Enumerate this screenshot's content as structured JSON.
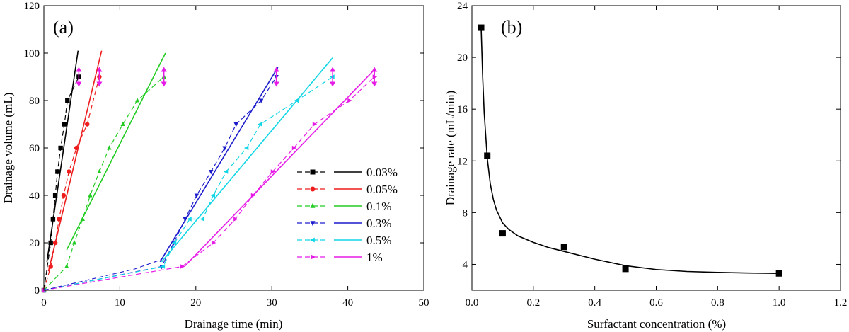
{
  "chart_data": [
    {
      "type": "line",
      "panel_label": "(a)",
      "xlabel": "Drainage time (min)",
      "ylabel": "Drainage volume (mL)",
      "xlim": [
        0,
        50
      ],
      "ylim": [
        0,
        120
      ],
      "xticks": [
        0,
        10,
        20,
        30,
        40,
        50
      ],
      "yticks": [
        0,
        20,
        40,
        60,
        80,
        100,
        120
      ],
      "tick_labels_x": [
        "0",
        "10",
        "20",
        "30",
        "40",
        "50"
      ],
      "tick_labels_y": [
        "0",
        "20",
        "40",
        "60",
        "80",
        "100",
        "120"
      ],
      "legend_position": "lower-right",
      "series": [
        {
          "name": "0.03%",
          "color": "#000000",
          "marker": "square",
          "marker_color": "#000000",
          "x": [
            0,
            0.9,
            1.2,
            1.5,
            1.8,
            2.2,
            2.7,
            3.1,
            4.6
          ],
          "y": [
            0,
            20,
            30,
            40,
            50,
            60,
            70,
            80,
            90
          ],
          "fit_x": [
            0.4,
            4.5
          ],
          "fit_y": [
            12,
            101
          ]
        },
        {
          "name": "0.05%",
          "color": "#ee1c1c",
          "marker": "circle",
          "marker_color": "#ee1c1c",
          "x": [
            0,
            0.9,
            1.5,
            2.0,
            2.6,
            3.3,
            4.3,
            5.7,
            7.3
          ],
          "y": [
            0,
            10,
            20,
            30,
            40,
            50,
            60,
            70,
            90
          ],
          "fit_x": [
            0.6,
            7.6
          ],
          "fit_y": [
            8,
            101
          ]
        },
        {
          "name": "0.1%",
          "color": "#22cc22",
          "marker": "triangle-up",
          "marker_color": "#22cc22",
          "x": [
            0,
            3.0,
            4.0,
            5.1,
            6.1,
            7.3,
            8.6,
            10.4,
            12.3,
            15.8
          ],
          "y": [
            0,
            10,
            20,
            30,
            40,
            50,
            60,
            70,
            80,
            90
          ],
          "fit_x": [
            3.0,
            16.0
          ],
          "fit_y": [
            17,
            100
          ]
        },
        {
          "name": "0.3%",
          "color": "#1c1ccc",
          "marker": "triangle-down",
          "marker_color": "#1c1ccc",
          "x": [
            0,
            15.5,
            17.1,
            18.6,
            20.1,
            22.0,
            23.8,
            25.3,
            28.6,
            30.6
          ],
          "y": [
            0,
            10,
            20,
            30,
            40,
            50,
            60,
            70,
            80,
            90
          ],
          "fit_x": [
            15.3,
            30.8
          ],
          "fit_y": [
            12,
            94
          ]
        },
        {
          "name": "0.5%",
          "color": "#12d6e6",
          "marker": "triangle-left",
          "marker_color": "#12d6e6",
          "x": [
            0,
            15.7,
            17.2,
            19.2,
            20.9,
            22.3,
            24.0,
            26.7,
            28.5,
            33.3,
            38.0
          ],
          "y": [
            0,
            10,
            20,
            30,
            30,
            40,
            50,
            60,
            70,
            80,
            90
          ],
          "fit_x": [
            15.5,
            38.0
          ],
          "fit_y": [
            12,
            98
          ]
        },
        {
          "name": "1%",
          "color": "#e61ce6",
          "marker": "triangle-right",
          "marker_color": "#e61ce6",
          "x": [
            0,
            18.2,
            22.3,
            25.2,
            27.5,
            30.1,
            32.9,
            35.6,
            40.2,
            43.5
          ],
          "y": [
            0,
            10,
            20,
            30,
            40,
            50,
            60,
            70,
            80,
            90
          ],
          "fit_x": [
            18.5,
            43.5
          ],
          "fit_y": [
            10,
            93
          ]
        }
      ],
      "flat_curve_x": [
        0,
        4,
        8,
        12,
        15.5
      ],
      "flat_curve_y": [
        0,
        3,
        6,
        9,
        13
      ]
    },
    {
      "type": "scatter",
      "panel_label": "(b)",
      "xlabel": "Surfactant concentration (%)",
      "ylabel": "Drainage rate (mL/min)",
      "xlim": [
        0,
        1.2
      ],
      "ylim": [
        2,
        24
      ],
      "xticks": [
        0,
        0.2,
        0.4,
        0.6,
        0.8,
        1.0,
        1.2
      ],
      "yticks": [
        4,
        8,
        12,
        16,
        20,
        24
      ],
      "tick_labels_x": [
        "0.0",
        "0.2",
        "0.4",
        "0.6",
        "0.8",
        "1.0",
        "1.2"
      ],
      "tick_labels_y": [
        "4",
        "8",
        "12",
        "16",
        "20",
        "24"
      ],
      "series": [
        {
          "name": "Drainage rate",
          "color": "#000000",
          "marker": "square",
          "x": [
            0.03,
            0.05,
            0.1,
            0.3,
            0.5,
            1.0
          ],
          "y": [
            22.3,
            12.4,
            6.4,
            5.35,
            3.65,
            3.3
          ]
        }
      ],
      "fit_curve": {
        "x": [
          0.03,
          0.035,
          0.04,
          0.05,
          0.06,
          0.07,
          0.08,
          0.1,
          0.12,
          0.15,
          0.2,
          0.25,
          0.3,
          0.4,
          0.5,
          0.6,
          0.7,
          0.8,
          0.9,
          1.0
        ],
        "y": [
          22.3,
          18.5,
          15.7,
          12.2,
          10.2,
          9.0,
          8.2,
          7.2,
          6.7,
          6.2,
          5.7,
          5.3,
          5.0,
          4.4,
          3.9,
          3.6,
          3.45,
          3.38,
          3.33,
          3.3
        ]
      }
    }
  ]
}
